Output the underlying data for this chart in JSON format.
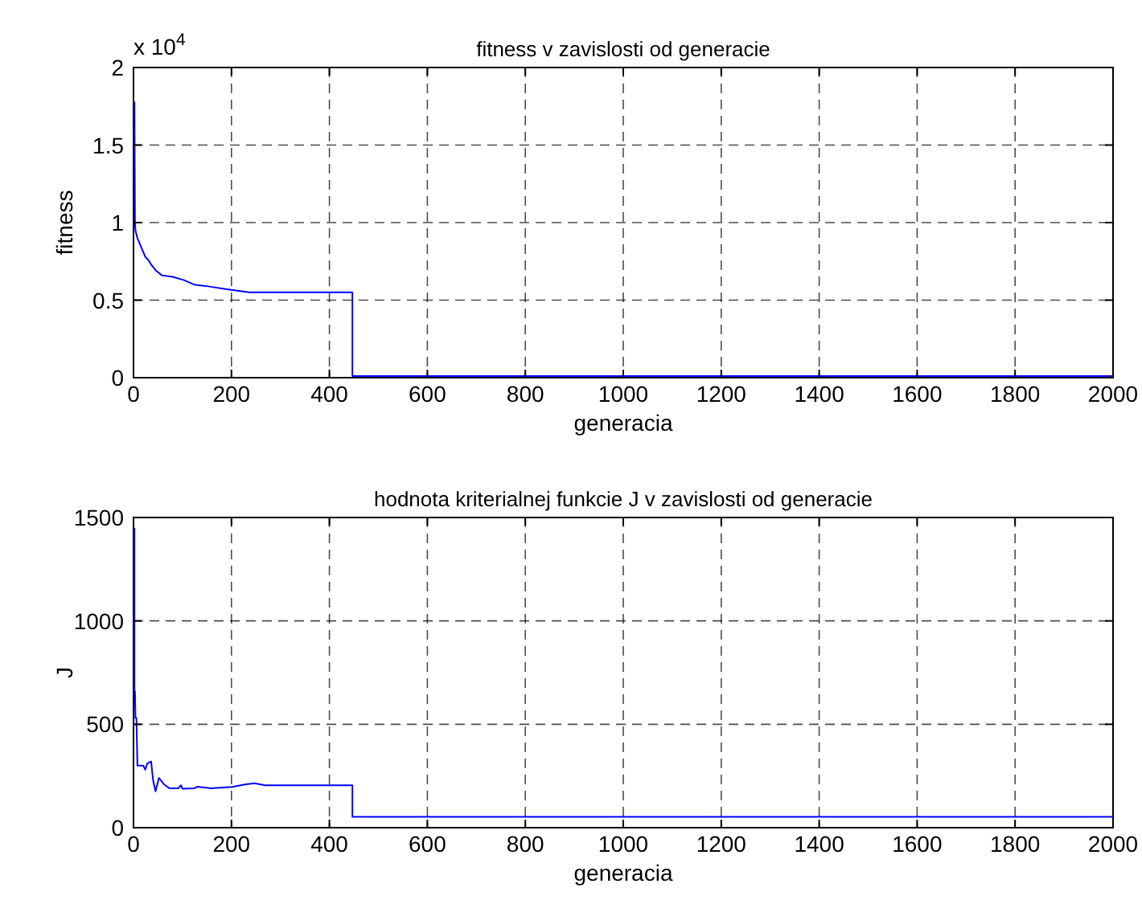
{
  "chart_data": [
    {
      "type": "line",
      "title": "fitness v zavislosti od generacie",
      "xlabel": "generacia",
      "ylabel": "fitness",
      "annotations": [
        "x 10$^{4}$"
      ],
      "series": [
        {
          "color": "#0000ff",
          "x": [
            2,
            3,
            4,
            8,
            16,
            24,
            30,
            36,
            46,
            58,
            80,
            102,
            124,
            150,
            191,
            236,
            447,
            447,
            2000
          ],
          "values": [
            1.78,
            1.0,
            0.95,
            0.9,
            0.84,
            0.78,
            0.76,
            0.73,
            0.69,
            0.66,
            0.65,
            0.63,
            0.6,
            0.59,
            0.57,
            0.55,
            0.55,
            0.01,
            0.01
          ]
        }
      ],
      "xlim": [
        0,
        2000
      ],
      "xticks": [
        0,
        200,
        400,
        600,
        800,
        1000,
        1200,
        1400,
        1600,
        1800,
        2000
      ],
      "ylim": [
        0,
        2
      ],
      "yticks": [
        0,
        0.5,
        1,
        1.5,
        2
      ],
      "grid": true,
      "line_style": "solid",
      "marker": "none"
    },
    {
      "type": "line",
      "title": "hodnota kriterialnej funkcie J v zavislosti od generacie",
      "xlabel": "generacia",
      "ylabel": "J",
      "series": [
        {
          "color": "#0000ff",
          "x": [
            2,
            2,
            3,
            4,
            6,
            8,
            20,
            24,
            28,
            36,
            40,
            45,
            52,
            62,
            74,
            91,
            97,
            100,
            124,
            130,
            158,
            202,
            230,
            247,
            269,
            447,
            447,
            2000
          ],
          "values": [
            1450,
            660,
            660,
            530,
            530,
            300,
            300,
            280,
            310,
            320,
            230,
            176,
            241,
            210,
            190,
            190,
            205,
            188,
            190,
            198,
            190,
            197,
            210,
            215,
            205,
            205,
            52,
            52
          ]
        }
      ],
      "xlim": [
        0,
        2000
      ],
      "xticks": [
        0,
        200,
        400,
        600,
        800,
        1000,
        1200,
        1400,
        1600,
        1800,
        2000
      ],
      "ylim": [
        0,
        1500
      ],
      "yticks": [
        0,
        500,
        1000,
        1500
      ],
      "grid": true,
      "line_style": "solid",
      "marker": "none"
    }
  ]
}
